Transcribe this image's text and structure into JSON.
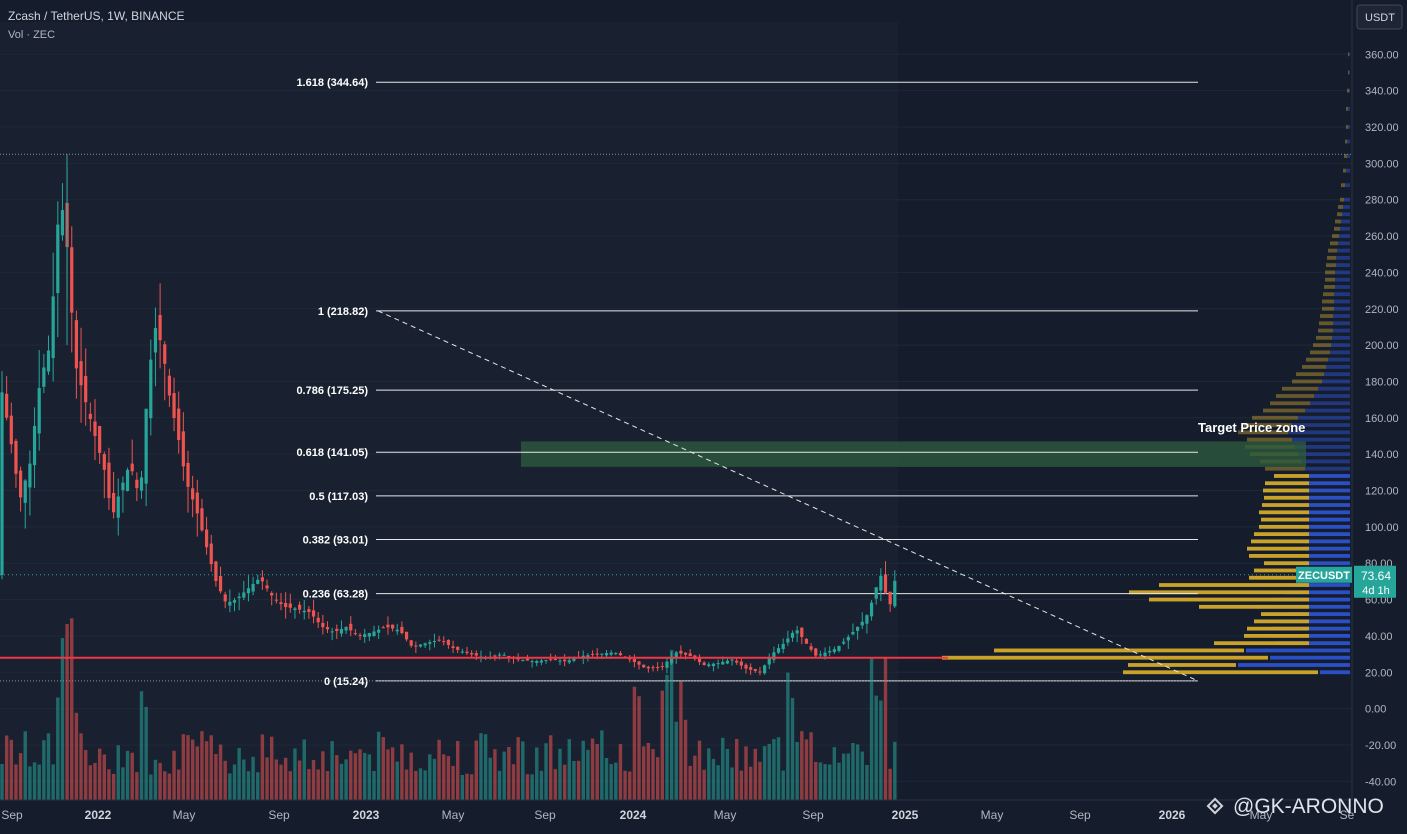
{
  "header": {
    "title": "Zcash / TetherUS, 1W, BINANCE",
    "volume_label": "Vol · ZEC"
  },
  "watermark": "@GK-ARONNO",
  "price_axis_unit": "USDT",
  "colors": {
    "background": "#151d2c",
    "up": "#26a69a",
    "down": "#ef5350",
    "support_line": "#f23645",
    "target_zone": "#2e5c3e",
    "profile_blue": "#2b4fc4",
    "profile_gold": "#c9a227"
  },
  "chart_data": {
    "type": "candlestick",
    "symbol": "ZECUSDT",
    "timeframe": "1W",
    "x_ticks": [
      "Sep",
      "2022",
      "May",
      "Sep",
      "2023",
      "May",
      "Sep",
      "2024",
      "May",
      "Sep",
      "2025",
      "May",
      "Sep",
      "2026",
      "May",
      "Se"
    ],
    "y_ticks": [
      "360.00",
      "340.00",
      "320.00",
      "300.00",
      "280.00",
      "260.00",
      "240.00",
      "220.00",
      "200.00",
      "180.00",
      "160.00",
      "140.00",
      "120.00",
      "100.00",
      "80.00",
      "60.00",
      "40.00",
      "20.00",
      "0.00",
      "-20.00",
      "-40.00"
    ],
    "y_tick_values": [
      360,
      340,
      320,
      300,
      280,
      260,
      240,
      220,
      200,
      180,
      160,
      140,
      120,
      100,
      80,
      60,
      40,
      20,
      0,
      -20,
      -40
    ],
    "last_price": {
      "symbol": "ZECUSDT",
      "value": "73.64",
      "countdown": "4d 1h"
    },
    "fibonacci": [
      {
        "label": "1.618 (344.64)",
        "price": 344.64
      },
      {
        "label": "1 (218.82)",
        "price": 218.82
      },
      {
        "label": "0.786 (175.25)",
        "price": 175.25
      },
      {
        "label": "0.618 (141.05)",
        "price": 141.05
      },
      {
        "label": "0.5 (117.03)",
        "price": 117.03
      },
      {
        "label": "0.382 (93.01)",
        "price": 93.01
      },
      {
        "label": "0.236 (63.28)",
        "price": 63.28
      },
      {
        "label": "0 (15.24)",
        "price": 15.24
      }
    ],
    "target_zone": {
      "label": "Target Price zone",
      "low": 133,
      "high": 147
    },
    "support_price": 28,
    "all_time_high_price": 305,
    "trendline": {
      "from_price": 218.82,
      "to_price": 15.24
    },
    "price_path": [
      [
        0,
        180
      ],
      [
        10,
        150
      ],
      [
        20,
        115
      ],
      [
        30,
        135
      ],
      [
        40,
        180
      ],
      [
        50,
        200
      ],
      [
        60,
        285
      ],
      [
        68,
        250
      ],
      [
        75,
        190
      ],
      [
        85,
        170
      ],
      [
        95,
        150
      ],
      [
        105,
        130
      ],
      [
        112,
        105
      ],
      [
        120,
        120
      ],
      [
        130,
        135
      ],
      [
        140,
        115
      ],
      [
        148,
        180
      ],
      [
        155,
        210
      ],
      [
        162,
        200
      ],
      [
        170,
        170
      ],
      [
        178,
        150
      ],
      [
        186,
        125
      ],
      [
        196,
        110
      ],
      [
        206,
        90
      ],
      [
        216,
        70
      ],
      [
        226,
        58
      ],
      [
        236,
        60
      ],
      [
        248,
        66
      ],
      [
        260,
        72
      ],
      [
        272,
        62
      ],
      [
        284,
        56
      ],
      [
        296,
        55
      ],
      [
        310,
        53
      ],
      [
        322,
        45
      ],
      [
        334,
        42
      ],
      [
        346,
        45
      ],
      [
        358,
        40
      ],
      [
        372,
        42
      ],
      [
        386,
        45
      ],
      [
        400,
        43
      ],
      [
        412,
        34
      ],
      [
        426,
        36
      ],
      [
        440,
        38
      ],
      [
        454,
        33
      ],
      [
        470,
        30
      ],
      [
        486,
        28
      ],
      [
        502,
        30
      ],
      [
        518,
        27
      ],
      [
        534,
        26
      ],
      [
        550,
        27
      ],
      [
        566,
        26
      ],
      [
        582,
        29
      ],
      [
        598,
        30
      ],
      [
        614,
        31
      ],
      [
        630,
        27
      ],
      [
        646,
        22
      ],
      [
        662,
        23
      ],
      [
        676,
        31
      ],
      [
        690,
        29
      ],
      [
        704,
        24
      ],
      [
        718,
        25
      ],
      [
        732,
        27
      ],
      [
        746,
        22
      ],
      [
        760,
        20
      ],
      [
        772,
        30
      ],
      [
        784,
        36
      ],
      [
        796,
        44
      ],
      [
        806,
        36
      ],
      [
        816,
        29
      ],
      [
        826,
        31
      ],
      [
        836,
        33
      ],
      [
        846,
        38
      ],
      [
        856,
        44
      ],
      [
        866,
        50
      ],
      [
        874,
        62
      ],
      [
        880,
        75
      ],
      [
        884,
        66
      ],
      [
        890,
        57
      ],
      [
        896,
        73.64
      ]
    ],
    "volume_profile": [
      {
        "price": 20,
        "blue": 30,
        "gold": 195
      },
      {
        "price": 24,
        "blue": 112,
        "gold": 108
      },
      {
        "price": 28,
        "blue": 80,
        "gold": 326
      },
      {
        "price": 32,
        "blue": 104,
        "gold": 250
      },
      {
        "price": 36,
        "blue": 73,
        "gold": 95
      },
      {
        "price": 40,
        "blue": 80,
        "gold": 65
      },
      {
        "price": 44,
        "blue": 78,
        "gold": 62
      },
      {
        "price": 48,
        "blue": 70,
        "gold": 55
      },
      {
        "price": 52,
        "blue": 62,
        "gold": 48
      },
      {
        "price": 56,
        "blue": 95,
        "gold": 110
      },
      {
        "price": 60,
        "blue": 78,
        "gold": 160
      },
      {
        "price": 64,
        "blue": 65,
        "gold": 180
      },
      {
        "price": 68,
        "blue": 55,
        "gold": 150
      },
      {
        "price": 72,
        "blue": 50,
        "gold": 60
      },
      {
        "price": 76,
        "blue": 48,
        "gold": 55
      },
      {
        "price": 80,
        "blue": 46,
        "gold": 45
      },
      {
        "price": 84,
        "blue": 45,
        "gold": 60
      },
      {
        "price": 88,
        "blue": 46,
        "gold": 62
      },
      {
        "price": 92,
        "blue": 47,
        "gold": 58
      },
      {
        "price": 96,
        "blue": 46,
        "gold": 55
      },
      {
        "price": 100,
        "blue": 45,
        "gold": 50
      },
      {
        "price": 104,
        "blue": 44,
        "gold": 48
      },
      {
        "price": 108,
        "blue": 44,
        "gold": 50
      },
      {
        "price": 112,
        "blue": 43,
        "gold": 47
      },
      {
        "price": 116,
        "blue": 43,
        "gold": 45
      },
      {
        "price": 120,
        "blue": 42,
        "gold": 46
      },
      {
        "price": 124,
        "blue": 42,
        "gold": 44
      },
      {
        "price": 128,
        "blue": 42,
        "gold": 35
      },
      {
        "price": 132,
        "blue": 45,
        "gold": 40
      },
      {
        "price": 136,
        "blue": 48,
        "gold": 42
      },
      {
        "price": 140,
        "blue": 52,
        "gold": 48
      },
      {
        "price": 144,
        "blue": 55,
        "gold": 50
      },
      {
        "price": 148,
        "blue": 58,
        "gold": 45
      },
      {
        "price": 152,
        "blue": 62,
        "gold": 50
      },
      {
        "price": 156,
        "blue": 58,
        "gold": 48
      },
      {
        "price": 160,
        "blue": 52,
        "gold": 46
      },
      {
        "price": 164,
        "blue": 45,
        "gold": 42
      },
      {
        "price": 168,
        "blue": 40,
        "gold": 40
      },
      {
        "price": 172,
        "blue": 36,
        "gold": 38
      },
      {
        "price": 176,
        "blue": 32,
        "gold": 36
      },
      {
        "price": 180,
        "blue": 28,
        "gold": 30
      },
      {
        "price": 184,
        "blue": 26,
        "gold": 28
      },
      {
        "price": 188,
        "blue": 24,
        "gold": 24
      },
      {
        "price": 192,
        "blue": 22,
        "gold": 22
      },
      {
        "price": 196,
        "blue": 20,
        "gold": 20
      },
      {
        "price": 200,
        "blue": 19,
        "gold": 18
      },
      {
        "price": 204,
        "blue": 18,
        "gold": 16
      },
      {
        "price": 208,
        "blue": 17,
        "gold": 15
      },
      {
        "price": 212,
        "blue": 17,
        "gold": 14
      },
      {
        "price": 216,
        "blue": 17,
        "gold": 13
      },
      {
        "price": 220,
        "blue": 16,
        "gold": 12
      },
      {
        "price": 224,
        "blue": 16,
        "gold": 12
      },
      {
        "price": 228,
        "blue": 16,
        "gold": 11
      },
      {
        "price": 232,
        "blue": 15,
        "gold": 11
      },
      {
        "price": 236,
        "blue": 15,
        "gold": 10
      },
      {
        "price": 240,
        "blue": 15,
        "gold": 10
      },
      {
        "price": 244,
        "blue": 14,
        "gold": 10
      },
      {
        "price": 248,
        "blue": 14,
        "gold": 9
      },
      {
        "price": 252,
        "blue": 13,
        "gold": 9
      },
      {
        "price": 256,
        "blue": 12,
        "gold": 8
      },
      {
        "price": 260,
        "blue": 11,
        "gold": 7
      },
      {
        "price": 264,
        "blue": 10,
        "gold": 6
      },
      {
        "price": 268,
        "blue": 9,
        "gold": 6
      },
      {
        "price": 272,
        "blue": 8,
        "gold": 5
      },
      {
        "price": 276,
        "blue": 7,
        "gold": 5
      },
      {
        "price": 280,
        "blue": 6,
        "gold": 4
      },
      {
        "price": 288,
        "blue": 5,
        "gold": 4
      },
      {
        "price": 296,
        "blue": 4,
        "gold": 3
      },
      {
        "price": 304,
        "blue": 3,
        "gold": 3
      },
      {
        "price": 312,
        "blue": 3,
        "gold": 2
      },
      {
        "price": 320,
        "blue": 2,
        "gold": 2
      },
      {
        "price": 330,
        "blue": 2,
        "gold": 2
      },
      {
        "price": 340,
        "blue": 1,
        "gold": 2
      },
      {
        "price": 350,
        "blue": 1,
        "gold": 1
      },
      {
        "price": 360,
        "blue": 1,
        "gold": 1
      }
    ]
  }
}
